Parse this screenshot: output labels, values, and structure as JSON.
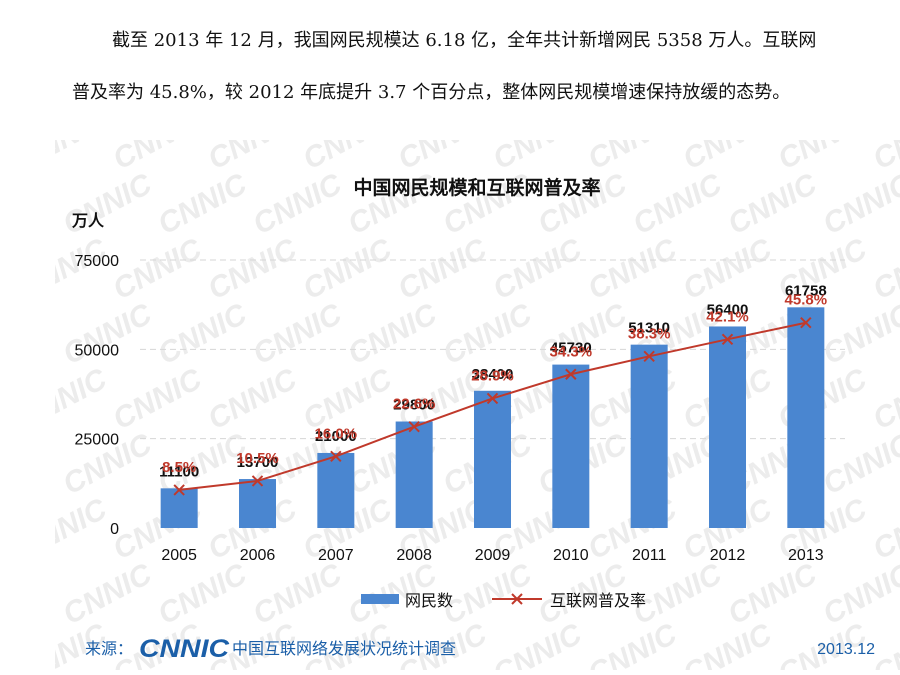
{
  "paragraph": {
    "line1": "截至 2013 年 12 月，我国网民规模达 6.18 亿，全年共计新增网民 5358 万人。互联网",
    "line2": "普及率为 45.8%，较 2012 年底提升 3.7 个百分点，整体网民规模增速保持放缓的态势。"
  },
  "watermark": "CNNIC",
  "footer": {
    "source_label": "来源：",
    "logo_text": "CNNIC",
    "org_text": "中国互联网络发展状况统计调查",
    "date": "2013.12"
  },
  "colors": {
    "bar": "#4a86d0",
    "line": "#c0392b",
    "rate_label": "#c0392b",
    "grid": "#d6d6d6",
    "footer_blue": "#1b5fa8"
  },
  "chart_data": {
    "type": "bar",
    "title": "中国网民规模和互联网普及率",
    "ylabel": "万人",
    "ylim": [
      0,
      75000
    ],
    "yticks": [
      "0",
      "25000",
      "50000",
      "75000"
    ],
    "categories": [
      "2005",
      "2006",
      "2007",
      "2008",
      "2009",
      "2010",
      "2011",
      "2012",
      "2013"
    ],
    "series": [
      {
        "name": "网民数",
        "type": "bar",
        "values": [
          11100,
          13700,
          21000,
          29800,
          38400,
          45730,
          51310,
          56400,
          61758
        ],
        "labels": [
          "11100",
          "13700",
          "21000",
          "29800",
          "38400",
          "45730",
          "51310",
          "56400",
          "61758"
        ]
      },
      {
        "name": "互联网普及率",
        "type": "line",
        "values": [
          8.5,
          10.5,
          16.0,
          22.6,
          28.9,
          34.3,
          38.3,
          42.1,
          45.8
        ],
        "labels": [
          "8.5%",
          "10.5%",
          "16.0%",
          "22.6%",
          "28.9%",
          "34.3%",
          "38.3%",
          "42.1%",
          "45.8%"
        ]
      }
    ],
    "legend": {
      "position": "bottom",
      "items": [
        "网民数",
        "互联网普及率"
      ]
    },
    "grid": true
  }
}
